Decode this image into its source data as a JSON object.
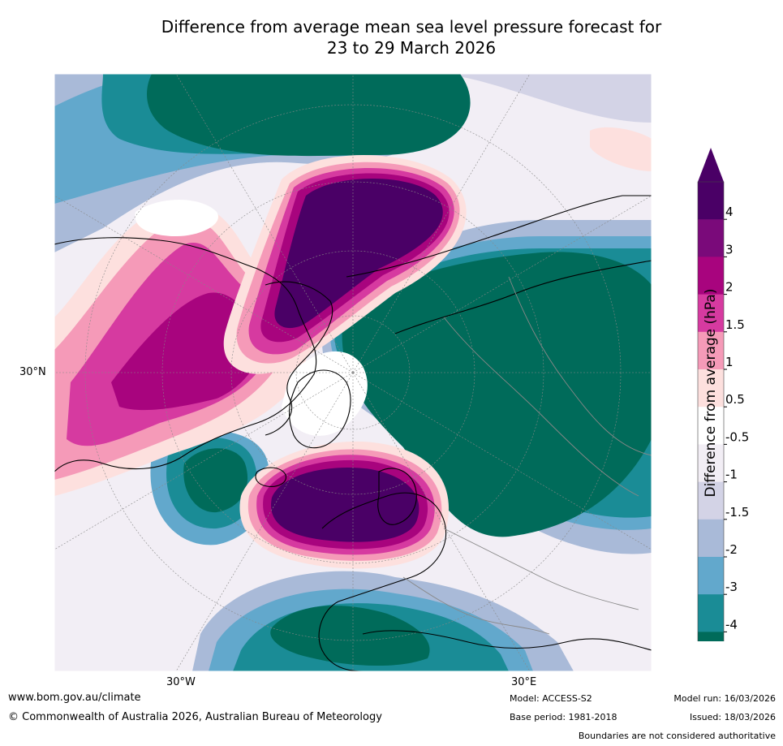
{
  "title": {
    "line1": "Difference from average mean sea level pressure forecast for",
    "line2": "23 to 29 March 2026"
  },
  "map": {
    "projection": "polar stereographic (northern hemisphere)",
    "lat_label_west": "30°N",
    "lon_labels": [
      "30°W",
      "30°E"
    ],
    "features": [
      {
        "name": "positive anomaly over Arctic / Greenland",
        "anomaly": 4
      },
      {
        "name": "positive anomaly over North Atlantic / Scandinavia",
        "anomaly": 4
      },
      {
        "name": "positive anomaly over North America / Pacific",
        "anomaly": 3
      },
      {
        "name": "negative anomaly over northern Asia",
        "anomaly": -4
      },
      {
        "name": "negative anomaly over North Pacific",
        "anomaly": -4
      },
      {
        "name": "negative anomaly over Mediterranean",
        "anomaly": -4
      },
      {
        "name": "negative anomaly over western Atlantic",
        "anomaly": -4
      }
    ]
  },
  "colorbar": {
    "label": "Difference from average (hPa)",
    "ticks": [
      "4",
      "3",
      "2",
      "1.5",
      "1",
      "0.5",
      "-0.5",
      "-1",
      "-1.5",
      "-2",
      "-3",
      "-4"
    ],
    "colors": [
      "#4a0066",
      "#7a0a7a",
      "#a8047e",
      "#d63aa0",
      "#f59ab8",
      "#fde0de",
      "#ffffff",
      "#f2eef5",
      "#d3d3e6",
      "#a9bad8",
      "#62a8cc",
      "#1a8c96",
      "#006b5a"
    ],
    "top_triangle_color": "#4a0066",
    "bottom_triangle_color": "#006b5a"
  },
  "footer": {
    "website": "www.bom.gov.au/climate",
    "copyright": "© Commonwealth of Australia 2026, Australian Bureau of Meteorology",
    "model": "Model: ACCESS-S2",
    "base_period": "Base period: 1981-2018",
    "model_run": "Model run: 16/03/2026",
    "issued": "Issued: 18/03/2026",
    "disclaimer": "Boundaries are not considered authoritative"
  }
}
